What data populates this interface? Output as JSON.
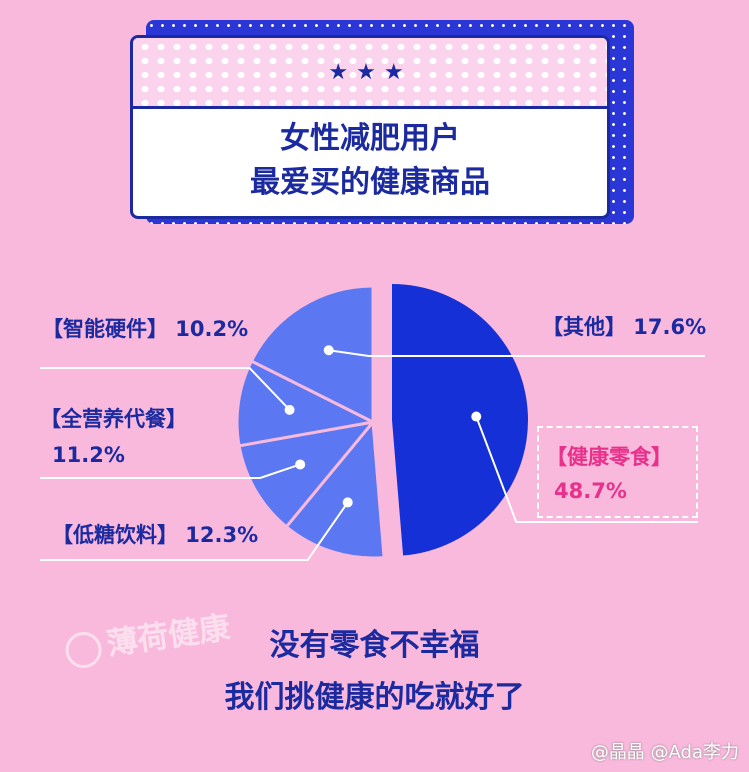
{
  "title": {
    "stars": "★★★",
    "line1": "女性减肥用户",
    "line2": "最爱买的健康商品"
  },
  "colors": {
    "background": "#f9b9dd",
    "dark_blue": "#1c2aa0",
    "main_slice": "#1530d6",
    "other_slices": "#5b78f2",
    "highlight": "#e8318a"
  },
  "chart_data": {
    "type": "pie",
    "title": "女性减肥用户最爱买的健康商品",
    "slices": [
      {
        "label": "【健康零食】",
        "value": 48.7,
        "value_text": "48.7%"
      },
      {
        "label": "【低糖饮料】",
        "value": 12.3,
        "value_text": "12.3%"
      },
      {
        "label": "【全营养代餐】",
        "value": 11.2,
        "value_text": "11.2%"
      },
      {
        "label": "【智能硬件】",
        "value": 10.2,
        "value_text": "10.2%"
      },
      {
        "label": "【其他】",
        "value": 17.6,
        "value_text": "17.6%"
      }
    ],
    "legend": "none"
  },
  "labels": {
    "other": "【其他】 17.6%",
    "snacks_name": "【健康零食】",
    "snacks_value": "48.7%",
    "hardware": "【智能硬件】 10.2%",
    "meal_name": "【全营养代餐】",
    "meal_value": "11.2%",
    "drinks": "【低糖饮料】 12.3%"
  },
  "watermark": "薄荷健康",
  "slogan": {
    "line1": "没有零食不幸福",
    "line2": "我们挑健康的吃就好了"
  },
  "credit": "@晶晶 @Ada李力"
}
